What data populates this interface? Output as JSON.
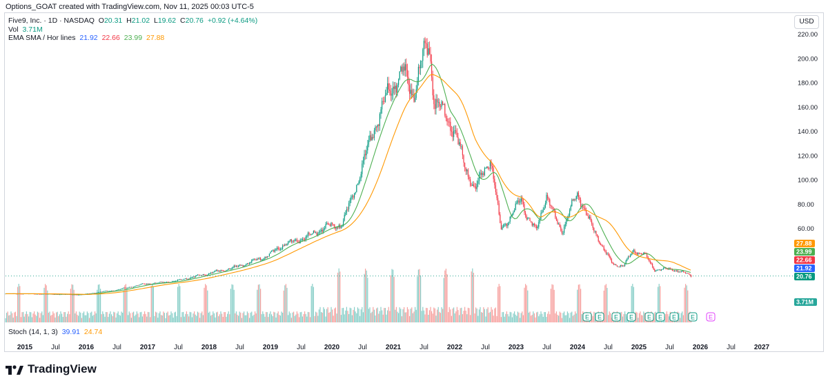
{
  "credit": "Options_GOAT created with TradingView.com, Nov 11, 2025 00:03 UTC-5",
  "legend": {
    "symbol": "Five9, Inc. · 1D · NASDAQ",
    "open_label": "O",
    "open": "20.31",
    "high_label": "H",
    "high": "21.02",
    "low_label": "L",
    "low": "19.62",
    "close_label": "C",
    "close": "20.76",
    "change": "+0.92 (+4.64%)",
    "vol_label": "Vol",
    "vol": "3.71M",
    "ema_label": "EMA SMA / Hor lines",
    "ema_values": [
      "21.92",
      "22.66",
      "23.99",
      "27.88"
    ],
    "stoch_label": "Stoch (14, 1, 3)",
    "stoch_values": [
      "39.91",
      "24.74"
    ]
  },
  "currency": "USD",
  "brand": "TradingView",
  "colors": {
    "up": "#089981",
    "down": "#f23645",
    "ema_blue": "#2962ff",
    "ema_red": "#f23645",
    "ema_green": "#4caf50",
    "ema_orange": "#ff9800",
    "volume_up": "#26a69a",
    "volume_down": "#ef5350",
    "earnings": "#089981",
    "earnings_future": "#e040fb"
  },
  "chart_data": {
    "type": "candlestick",
    "title": "Five9, Inc. · 1D · NASDAQ",
    "y_ticks": [
      60,
      80,
      100,
      120,
      140,
      160,
      180,
      200,
      220
    ],
    "y_tick_labels": [
      "60.00",
      "80.00",
      "100.00",
      "120.00",
      "140.00",
      "160.00",
      "180.00",
      "200.00",
      "220.00"
    ],
    "x_tick_labels": [
      "2015",
      "Jul",
      "2016",
      "Jul",
      "2017",
      "Jul",
      "2018",
      "Jul",
      "2019",
      "Jul",
      "2020",
      "Jul",
      "2021",
      "Jul",
      "2022",
      "Jul",
      "2023",
      "Jul",
      "2024",
      "Jul",
      "2025",
      "Jul",
      "2026",
      "Jul",
      "2027"
    ],
    "price_path": [
      [
        "2015-01-01",
        5.2
      ],
      [
        "2015-07-01",
        4.8
      ],
      [
        "2015-12-01",
        4.3
      ],
      [
        "2016-03-01",
        6.3
      ],
      [
        "2016-07-01",
        8.5
      ],
      [
        "2016-12-01",
        13.5
      ],
      [
        "2017-06-01",
        16.0
      ],
      [
        "2017-12-01",
        22.0
      ],
      [
        "2018-06-01",
        28.0
      ],
      [
        "2018-12-01",
        37.0
      ],
      [
        "2019-04-01",
        48.0
      ],
      [
        "2019-06-01",
        50.0
      ],
      [
        "2019-09-01",
        55.0
      ],
      [
        "2019-12-01",
        62.0
      ],
      [
        "2020-03-01",
        63.0
      ],
      [
        "2020-06-01",
        98.0
      ],
      [
        "2020-09-01",
        140.0
      ],
      [
        "2020-12-01",
        172.0
      ],
      [
        "2021-03-01",
        190.0
      ],
      [
        "2021-05-01",
        170.0
      ],
      [
        "2021-07-01",
        205.0
      ],
      [
        "2021-08-01",
        212.0
      ],
      [
        "2021-09-01",
        165.0
      ],
      [
        "2021-11-01",
        155.0
      ],
      [
        "2022-01-01",
        140.0
      ],
      [
        "2022-03-01",
        112.0
      ],
      [
        "2022-05-01",
        92.0
      ],
      [
        "2022-07-01",
        110.0
      ],
      [
        "2022-08-01",
        118.0
      ],
      [
        "2022-09-01",
        90.0
      ],
      [
        "2022-10-01",
        60.0
      ],
      [
        "2022-12-01",
        70.0
      ],
      [
        "2023-02-01",
        85.0
      ],
      [
        "2023-03-01",
        72.0
      ],
      [
        "2023-05-01",
        58.0
      ],
      [
        "2023-07-01",
        88.0
      ],
      [
        "2023-09-01",
        65.0
      ],
      [
        "2023-10-01",
        58.0
      ],
      [
        "2023-12-01",
        80.0
      ],
      [
        "2024-01-01",
        88.0
      ],
      [
        "2024-02-01",
        80.0
      ],
      [
        "2024-04-01",
        60.0
      ],
      [
        "2024-06-01",
        45.0
      ],
      [
        "2024-08-01",
        30.0
      ],
      [
        "2024-10-01",
        30.0
      ],
      [
        "2024-12-01",
        42.0
      ],
      [
        "2025-02-01",
        40.0
      ],
      [
        "2025-04-01",
        26.0
      ],
      [
        "2025-06-01",
        27.0
      ],
      [
        "2025-09-01",
        25.0
      ],
      [
        "2025-11-10",
        20.76
      ]
    ],
    "ema_series": [
      {
        "name": "EMA",
        "color": "#2962ff",
        "last": 21.92
      },
      {
        "name": "EMA",
        "color": "#f23645",
        "last": 22.66
      },
      {
        "name": "SMA",
        "color": "#4caf50",
        "last": 23.99
      },
      {
        "name": "SMA",
        "color": "#ff9800",
        "last": 27.88
      }
    ],
    "last_price": 20.76,
    "last_volume": "3.71M",
    "horizontal_line": 20.76,
    "earnings_markers": 10,
    "upcoming_earnings_markers": 1,
    "earnings_marker_label": "E"
  }
}
